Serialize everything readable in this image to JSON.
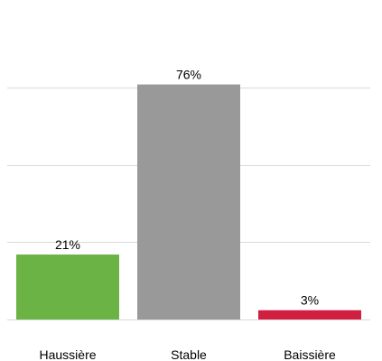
{
  "chart_data": {
    "type": "bar",
    "categories": [
      "Haussière",
      "Stable",
      "Baissière"
    ],
    "values": [
      21,
      76,
      3
    ],
    "value_labels": [
      "21%",
      "76%",
      "3%"
    ],
    "colors": [
      "#6ab344",
      "#999999",
      "#d11f42"
    ],
    "title": "",
    "xlabel": "",
    "ylabel": "",
    "ylim": [
      0,
      75
    ],
    "yticks": [
      0,
      25,
      50,
      75
    ],
    "grid": true,
    "legend": "none"
  }
}
